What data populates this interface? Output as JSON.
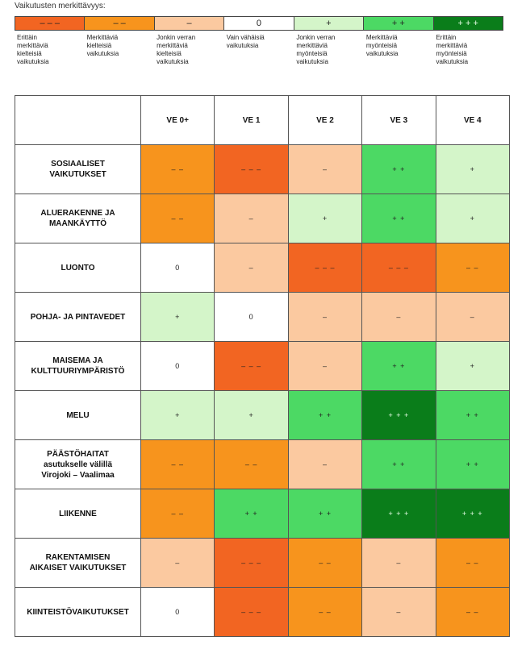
{
  "legend": {
    "title": "Vaikutusten merkittävyys:",
    "items": [
      {
        "symbol": "– – –",
        "color": "#f26522",
        "label": "Erittäin\nmerkittäviä\nkielteisiä\nvaikutuksia"
      },
      {
        "symbol": "– –",
        "color": "#f7941d",
        "label": "Merkittäviä\nkielteisiä\nvaikutuksia"
      },
      {
        "symbol": "–",
        "color": "#fbc9a0",
        "label": "Jonkin verran\nmerkittäviä\nkielteisiä\nvaikutuksia"
      },
      {
        "symbol": "0",
        "color": "#ffffff",
        "label": "Vain vähäisiä\nvaikutuksia"
      },
      {
        "symbol": "+",
        "color": "#d4f5c9",
        "label": "Jonkin verran\nmerkittäviä\nmyönteisiä\nvaikutuksia"
      },
      {
        "symbol": "+ +",
        "color": "#4cd964",
        "label": "Merkittäviä\nmyönteisiä\nvaikutuksia"
      },
      {
        "symbol": "+ + +",
        "color": "#0a7d1a",
        "label": "Erittäin\nmerkittäviä\nmyönteisiä\nvaikutuksia"
      }
    ]
  },
  "columns": [
    "VE 0+",
    "VE 1",
    "VE 2",
    "VE 3",
    "VE 4"
  ],
  "rows": [
    {
      "label": "SOSIAALISET\nVAIKUTUKSET",
      "cells": [
        "– –",
        "– – –",
        "–",
        "+ +",
        "+"
      ]
    },
    {
      "label": "ALUERAKENNE JA\nMAANKÄYTTÖ",
      "cells": [
        "– –",
        "–",
        "+",
        "+ +",
        "+"
      ]
    },
    {
      "label": "LUONTO",
      "cells": [
        "0",
        "–",
        "– – –",
        "– – –",
        "– –"
      ]
    },
    {
      "label": "POHJA- JA PINTAVEDET",
      "cells": [
        "+",
        "0",
        "–",
        "–",
        "–"
      ]
    },
    {
      "label": "MAISEMA JA\nKULTTUURIYMPÄRISTÖ",
      "cells": [
        "0",
        "– – –",
        "–",
        "+ +",
        "+"
      ]
    },
    {
      "label": "MELU",
      "cells": [
        "+",
        "+",
        "+ +",
        "+ + +",
        "+ +"
      ]
    },
    {
      "label": "PÄÄSTÖHAITAT\nasutukselle välillä\nVirojoki – Vaalimaa",
      "cells": [
        "– –",
        "– –",
        "–",
        "+ +",
        "+ +"
      ]
    },
    {
      "label": "LIIKENNE",
      "cells": [
        "– –",
        "+ +",
        "+ +",
        "+ + +",
        "+ + +"
      ]
    },
    {
      "label": "RAKENTAMISEN\nAIKAISET VAIKUTUKSET",
      "cells": [
        "–",
        "– – –",
        "– –",
        "–",
        "– –"
      ]
    },
    {
      "label": "KIINTEISTÖVAIKUTUKSET",
      "cells": [
        "0",
        "– – –",
        "– –",
        "–",
        "– –"
      ]
    }
  ]
}
